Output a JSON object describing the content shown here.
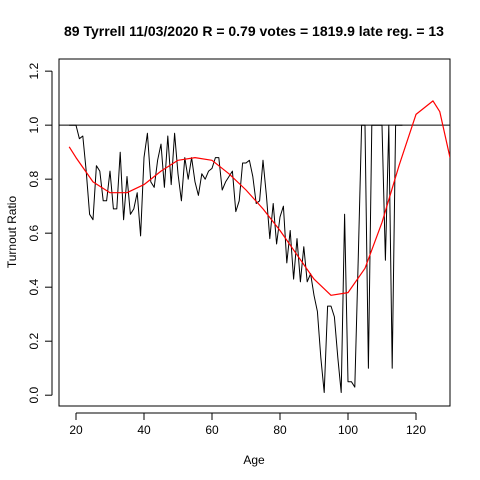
{
  "chart_data": {
    "type": "line",
    "title": "89 Tyrrell 11/03/2020 R = 0.79 votes = 1819.9 late reg. = 13",
    "xlabel": "Age",
    "ylabel": "Turnout Ratio",
    "xlim": [
      15,
      130
    ],
    "ylim": [
      -0.04,
      1.245
    ],
    "x_ticks": [
      20,
      40,
      60,
      80,
      100,
      120
    ],
    "x_tick_labels": [
      "20",
      "40",
      "60",
      "80",
      "100",
      "120"
    ],
    "y_ticks": [
      0.0,
      0.2,
      0.4,
      0.6,
      0.8,
      1.0,
      1.2
    ],
    "y_tick_labels": [
      "0.0",
      "0.2",
      "0.4",
      "0.6",
      "0.8",
      "1.0",
      "1.2"
    ],
    "grid": false,
    "colors": {
      "observed": "#000000",
      "fit": "#ff0000",
      "reference": "#000000"
    },
    "reference_line": {
      "y": 1.0
    },
    "series": [
      {
        "style": "black-line",
        "x": [
          18,
          19,
          20,
          21,
          22,
          23,
          24,
          25,
          26,
          27,
          28,
          29,
          30,
          31,
          32,
          33,
          34,
          35,
          36,
          37,
          38,
          39,
          40,
          41,
          42,
          43,
          44,
          45,
          46,
          47,
          48,
          49,
          50,
          51,
          52,
          53,
          54,
          55,
          56,
          57,
          58,
          59,
          60,
          61,
          62,
          63,
          64,
          65,
          66,
          67,
          68,
          69,
          70,
          71,
          72,
          73,
          74,
          75,
          76,
          77,
          78,
          79,
          80,
          81,
          82,
          83,
          84,
          85,
          86,
          87,
          88,
          89,
          90,
          91,
          92,
          93,
          94,
          95,
          96,
          97,
          98,
          99,
          100,
          101,
          102,
          103,
          104,
          105,
          106,
          107,
          108,
          109,
          110,
          111,
          112,
          113,
          114,
          115,
          116
        ],
        "y": [
          1.0,
          1.0,
          1.0,
          0.95,
          0.96,
          0.83,
          0.67,
          0.65,
          0.85,
          0.83,
          0.72,
          0.72,
          0.83,
          0.69,
          0.69,
          0.9,
          0.65,
          0.81,
          0.67,
          0.69,
          0.75,
          0.59,
          0.88,
          0.97,
          0.79,
          0.77,
          0.87,
          0.93,
          0.77,
          0.96,
          0.78,
          0.97,
          0.82,
          0.72,
          0.88,
          0.8,
          0.88,
          0.79,
          0.74,
          0.82,
          0.8,
          0.83,
          0.84,
          0.88,
          0.88,
          0.76,
          0.79,
          0.81,
          0.83,
          0.68,
          0.72,
          0.86,
          0.86,
          0.87,
          0.81,
          0.71,
          0.72,
          0.87,
          0.74,
          0.58,
          0.71,
          0.56,
          0.66,
          0.7,
          0.49,
          0.61,
          0.43,
          0.58,
          0.42,
          0.55,
          0.42,
          0.45,
          0.37,
          0.31,
          0.14,
          0.01,
          0.33,
          0.33,
          0.29,
          0.14,
          0.01,
          0.67,
          0.05,
          0.05,
          0.03,
          0.5,
          1.0,
          1.0,
          0.1,
          1.0,
          1.0,
          1.0,
          1.0,
          0.5,
          1.0,
          0.1,
          1.0,
          1.0,
          1.0
        ]
      },
      {
        "style": "red-fit",
        "x": [
          18,
          20,
          25,
          30,
          35,
          40,
          45,
          50,
          55,
          60,
          65,
          70,
          75,
          80,
          85,
          90,
          95,
          100,
          105,
          110,
          115,
          120,
          125,
          127,
          130
        ],
        "y": [
          0.92,
          0.88,
          0.79,
          0.75,
          0.75,
          0.78,
          0.83,
          0.87,
          0.88,
          0.87,
          0.82,
          0.76,
          0.69,
          0.61,
          0.52,
          0.43,
          0.37,
          0.38,
          0.47,
          0.64,
          0.85,
          1.04,
          1.09,
          1.05,
          0.88
        ]
      }
    ]
  }
}
